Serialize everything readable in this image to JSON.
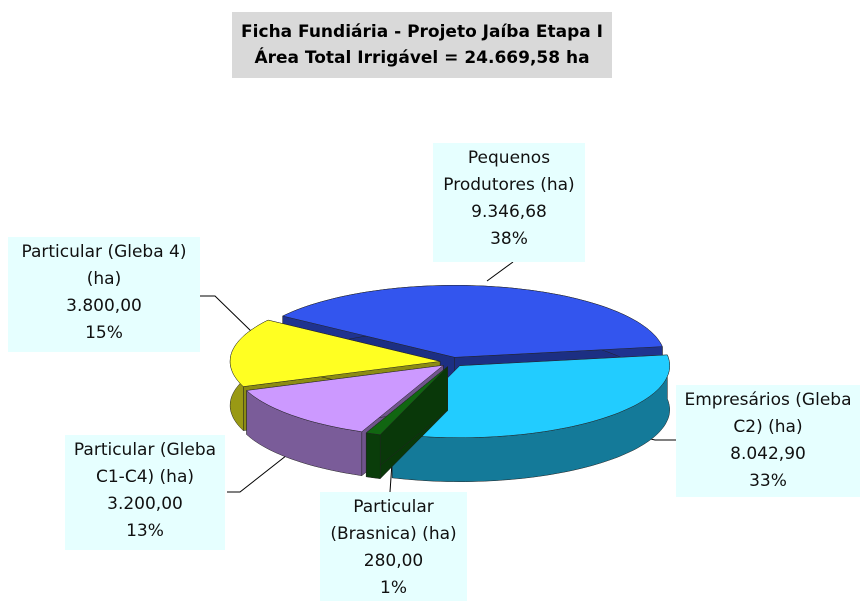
{
  "chart_data": {
    "type": "pie3d",
    "title": [
      "Ficha Fundiária - Projeto Jaíba Etapa I",
      "Área Total Irrigável = 24.669,58 ha"
    ],
    "categories": [
      "Pequenos Produtores (ha)",
      "Empresários (Gleba C2) (ha)",
      "Particular (Brasnica) (ha)",
      "Particular (Gleba C1-C4) (ha)",
      "Particular (Gleba 4) (ha)"
    ],
    "values": [
      9346.68,
      8042.9,
      280,
      3200,
      3800
    ],
    "value_labels": [
      "9.346,68",
      "8.042,90",
      "280,00",
      "3.200,00",
      "3.800,00"
    ],
    "percent_values": [
      38,
      33,
      1,
      13,
      15
    ],
    "percent_labels": [
      "38%",
      "33%",
      "1%",
      "13%",
      "15%"
    ],
    "colors": [
      "#3355ee",
      "#22ccff",
      "#116611",
      "#cc99ff",
      "#ffff22"
    ]
  }
}
